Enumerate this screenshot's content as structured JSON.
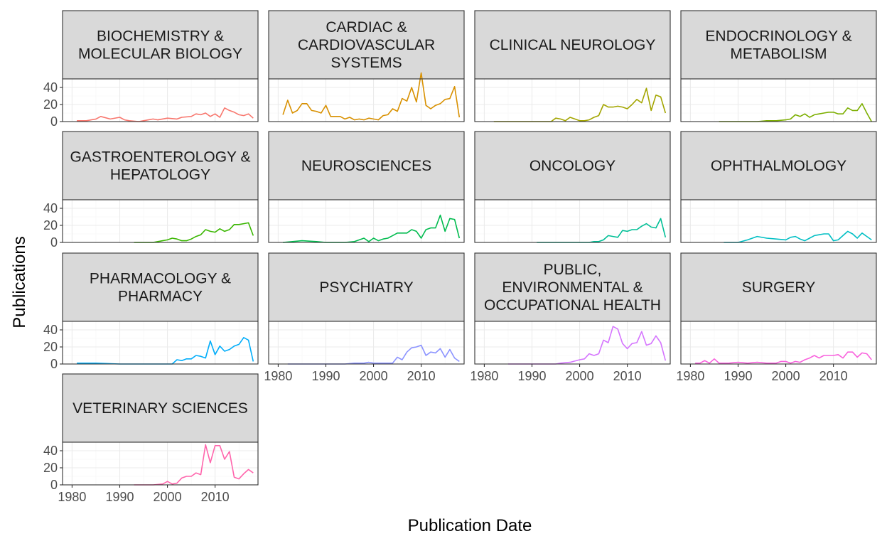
{
  "chart_data": {
    "type": "line",
    "layout": "facet-wrap",
    "xlabel": "Publication Date",
    "ylabel": "Publications",
    "xlim": [
      1978,
      2019
    ],
    "ylim": [
      0,
      50
    ],
    "x_ticks": [
      1980,
      1990,
      2000,
      2010
    ],
    "y_ticks": [
      0,
      20,
      40
    ],
    "grid": true,
    "legend": "none",
    "panels": [
      {
        "title": "BIOCHEMISTRY &\nMOLECULAR BIOLOGY",
        "color": "#F8766D",
        "x": [
          1981,
          1983,
          1985,
          1986,
          1988,
          1990,
          1991,
          1992,
          1994,
          1995,
          1997,
          1998,
          2000,
          2002,
          2003,
          2005,
          2006,
          2007,
          2008,
          2009,
          2010,
          2011,
          2012,
          2013,
          2014,
          2015,
          2016,
          2017,
          2018
        ],
        "values": [
          1,
          1,
          3,
          6,
          3,
          5,
          2,
          1,
          0,
          1,
          3,
          2,
          4,
          3,
          5,
          6,
          9,
          8,
          10,
          6,
          9,
          5,
          16,
          13,
          11,
          8,
          7,
          9,
          4
        ]
      },
      {
        "title": "CARDIAC &\nCARDIOVASCULAR\nSYSTEMS",
        "color": "#D89000",
        "x": [
          1981,
          1982,
          1983,
          1984,
          1985,
          1986,
          1987,
          1988,
          1989,
          1990,
          1991,
          1992,
          1993,
          1994,
          1995,
          1996,
          1997,
          1998,
          1999,
          2000,
          2001,
          2002,
          2003,
          2004,
          2005,
          2006,
          2007,
          2008,
          2009,
          2010,
          2011,
          2012,
          2013,
          2014,
          2015,
          2016,
          2017,
          2018
        ],
        "values": [
          8,
          25,
          10,
          13,
          21,
          21,
          13,
          12,
          10,
          19,
          6,
          6,
          6,
          3,
          5,
          2,
          3,
          2,
          4,
          3,
          2,
          7,
          8,
          15,
          12,
          27,
          24,
          40,
          23,
          57,
          19,
          15,
          19,
          21,
          26,
          27,
          41,
          5
        ]
      },
      {
        "title": "CLINICAL NEUROLOGY",
        "color": "#A3A500",
        "x": [
          1982,
          1986,
          1990,
          1994,
          1995,
          1996,
          1997,
          1998,
          1999,
          2000,
          2001,
          2002,
          2003,
          2004,
          2005,
          2006,
          2007,
          2008,
          2009,
          2010,
          2011,
          2012,
          2013,
          2014,
          2015,
          2016,
          2017,
          2018
        ],
        "values": [
          0,
          0,
          0,
          0,
          4,
          3,
          1,
          5,
          3,
          1,
          1,
          2,
          5,
          7,
          20,
          17,
          17,
          18,
          17,
          15,
          20,
          26,
          22,
          39,
          13,
          31,
          29,
          10
        ]
      },
      {
        "title": "ENDOCRINOLOGY &\nMETABOLISM",
        "color": "#7CAE00",
        "x": [
          1986,
          1990,
          1994,
          1996,
          1998,
          2000,
          2001,
          2002,
          2003,
          2004,
          2005,
          2006,
          2007,
          2008,
          2009,
          2010,
          2011,
          2012,
          2013,
          2014,
          2015,
          2016,
          2017,
          2018
        ],
        "values": [
          0,
          0,
          0,
          1,
          1,
          2,
          3,
          8,
          6,
          9,
          5,
          8,
          9,
          10,
          11,
          11,
          9,
          9,
          16,
          13,
          13,
          21,
          10,
          0
        ]
      },
      {
        "title": "GASTROENTEROLOGY &\nHEPATOLOGY",
        "color": "#39B600",
        "x": [
          1993,
          1997,
          1998,
          1999,
          2000,
          2001,
          2002,
          2003,
          2004,
          2005,
          2006,
          2007,
          2008,
          2009,
          2010,
          2011,
          2012,
          2013,
          2014,
          2015,
          2016,
          2017,
          2018
        ],
        "values": [
          0,
          0,
          1,
          2,
          3,
          5,
          4,
          2,
          2,
          4,
          7,
          9,
          15,
          13,
          12,
          16,
          13,
          15,
          21,
          21,
          22,
          23,
          8
        ]
      },
      {
        "title": "NEUROSCIENCES",
        "color": "#00BB4E",
        "x": [
          1981,
          1983,
          1985,
          1988,
          1990,
          1992,
          1994,
          1996,
          1997,
          1998,
          1999,
          2000,
          2001,
          2002,
          2003,
          2004,
          2005,
          2006,
          2007,
          2008,
          2009,
          2010,
          2011,
          2012,
          2013,
          2014,
          2015,
          2016,
          2017,
          2018
        ],
        "values": [
          0,
          1,
          2,
          1,
          0,
          0,
          0,
          1,
          3,
          5,
          1,
          5,
          2,
          4,
          5,
          8,
          11,
          11,
          11,
          15,
          13,
          5,
          15,
          17,
          17,
          32,
          13,
          28,
          27,
          5
        ]
      },
      {
        "title": "ONCOLOGY",
        "color": "#00BF96",
        "x": [
          1991,
          1995,
          1999,
          2001,
          2002,
          2003,
          2004,
          2005,
          2006,
          2007,
          2008,
          2009,
          2010,
          2011,
          2012,
          2013,
          2014,
          2015,
          2016,
          2017,
          2018
        ],
        "values": [
          0,
          0,
          0,
          0,
          0,
          1,
          1,
          3,
          8,
          7,
          6,
          14,
          13,
          15,
          15,
          19,
          22,
          18,
          17,
          28,
          6
        ]
      },
      {
        "title": "OPHTHALMOLOGY",
        "color": "#00BFC4",
        "x": [
          1987,
          1990,
          1992,
          1994,
          1996,
          1998,
          2000,
          2001,
          2002,
          2003,
          2004,
          2005,
          2006,
          2007,
          2008,
          2009,
          2010,
          2011,
          2012,
          2013,
          2014,
          2015,
          2016,
          2017,
          2018
        ],
        "values": [
          0,
          0,
          3,
          7,
          5,
          4,
          3,
          6,
          7,
          4,
          2,
          5,
          8,
          9,
          10,
          10,
          2,
          3,
          8,
          13,
          10,
          5,
          11,
          7,
          3
        ]
      },
      {
        "title": "PHARMACOLOGY &\nPHARMACY",
        "color": "#00ADFA",
        "x": [
          1981,
          1985,
          1990,
          1995,
          2000,
          2001,
          2002,
          2003,
          2004,
          2005,
          2006,
          2007,
          2008,
          2009,
          2010,
          2011,
          2012,
          2013,
          2014,
          2015,
          2016,
          2017,
          2018
        ],
        "values": [
          1,
          1,
          0,
          0,
          0,
          0,
          5,
          4,
          6,
          6,
          10,
          9,
          7,
          27,
          11,
          21,
          15,
          17,
          21,
          23,
          31,
          28,
          3
        ]
      },
      {
        "title": "PSYCHIATRY",
        "color": "#8B93FF",
        "x": [
          1982,
          1986,
          1990,
          1994,
          1996,
          1998,
          1999,
          2000,
          2001,
          2002,
          2003,
          2004,
          2005,
          2006,
          2007,
          2008,
          2009,
          2010,
          2011,
          2012,
          2013,
          2014,
          2015,
          2016,
          2017,
          2018
        ],
        "values": [
          0,
          0,
          0,
          0,
          1,
          1,
          2,
          1,
          1,
          1,
          1,
          1,
          8,
          5,
          14,
          19,
          20,
          22,
          10,
          14,
          13,
          18,
          8,
          17,
          7,
          3
        ]
      },
      {
        "title": "PUBLIC,\nENVIRONMENTAL &\nOCCUPATIONAL HEALTH",
        "color": "#D575FE",
        "x": [
          1985,
          1990,
          1995,
          1996,
          1998,
          2000,
          2001,
          2002,
          2003,
          2004,
          2005,
          2006,
          2007,
          2008,
          2009,
          2010,
          2011,
          2012,
          2013,
          2014,
          2015,
          2016,
          2017,
          2018
        ],
        "values": [
          0,
          0,
          0,
          1,
          2,
          5,
          6,
          12,
          10,
          12,
          28,
          25,
          44,
          41,
          24,
          18,
          24,
          25,
          38,
          22,
          24,
          33,
          25,
          4
        ]
      },
      {
        "title": "SURGERY",
        "color": "#F962DD",
        "x": [
          1981,
          1982,
          1983,
          1984,
          1985,
          1986,
          1988,
          1990,
          1992,
          1994,
          1996,
          1998,
          1999,
          2000,
          2001,
          2002,
          2003,
          2004,
          2005,
          2006,
          2007,
          2008,
          2009,
          2010,
          2011,
          2012,
          2013,
          2014,
          2015,
          2016,
          2017,
          2018
        ],
        "values": [
          1,
          1,
          4,
          1,
          6,
          1,
          1,
          2,
          1,
          2,
          1,
          1,
          3,
          3,
          1,
          3,
          2,
          5,
          7,
          10,
          7,
          10,
          10,
          10,
          11,
          7,
          14,
          14,
          8,
          13,
          12,
          5
        ]
      },
      {
        "title": "VETERINARY SCIENCES",
        "color": "#FF65AC",
        "x": [
          1993,
          1997,
          1999,
          2000,
          2001,
          2002,
          2003,
          2004,
          2005,
          2006,
          2007,
          2008,
          2009,
          2010,
          2011,
          2012,
          2013,
          2014,
          2015,
          2016,
          2017,
          2018
        ],
        "values": [
          0,
          0,
          1,
          4,
          1,
          2,
          8,
          10,
          10,
          14,
          12,
          47,
          26,
          46,
          46,
          30,
          39,
          9,
          7,
          13,
          18,
          14
        ]
      }
    ]
  }
}
